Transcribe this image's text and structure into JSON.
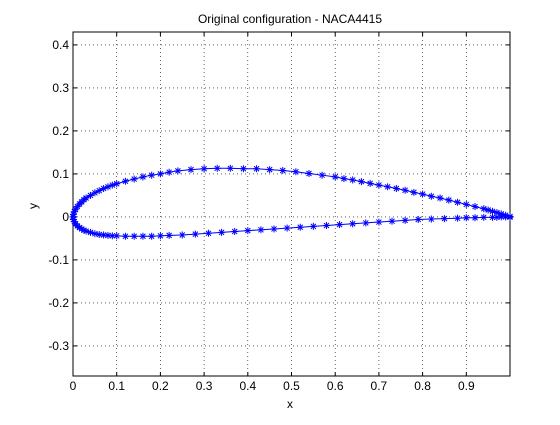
{
  "chart_data": {
    "type": "scatter",
    "title": "Original configuration - NACA4415",
    "xlabel": "x",
    "ylabel": "y",
    "xlim": [
      0,
      1
    ],
    "ylim": [
      -0.37,
      0.43
    ],
    "x_ticks": [
      0,
      0.1,
      0.2,
      0.3,
      0.4,
      0.5,
      0.6,
      0.7,
      0.8,
      0.9
    ],
    "x_tick_labels": [
      "0",
      "0.1",
      "0.2",
      "0.3",
      "0.4",
      "0.5",
      "0.6",
      "0.7",
      "0.8",
      "0.9"
    ],
    "y_ticks": [
      -0.3,
      -0.2,
      -0.1,
      0,
      0.1,
      0.2,
      0.3,
      0.4
    ],
    "y_tick_labels": [
      "-0.3",
      "-0.2",
      "-0.1",
      "0",
      "0.1",
      "0.2",
      "0.3",
      "0.4"
    ],
    "grid": true,
    "grid_style": "dotted",
    "marker": "asterisk",
    "series_color": "#0000ff",
    "series": [
      {
        "line": true,
        "x": [
          1.0,
          0.99,
          0.98,
          0.97,
          0.96,
          0.95,
          0.94,
          0.92,
          0.9,
          0.88,
          0.86,
          0.84,
          0.82,
          0.8,
          0.78,
          0.76,
          0.74,
          0.72,
          0.7,
          0.68,
          0.66,
          0.64,
          0.62,
          0.6,
          0.57,
          0.54,
          0.51,
          0.48,
          0.45,
          0.42,
          0.39,
          0.36,
          0.33,
          0.3,
          0.27,
          0.24,
          0.22,
          0.2,
          0.18,
          0.16,
          0.14,
          0.12,
          0.1,
          0.09,
          0.08,
          0.07,
          0.06,
          0.05,
          0.04,
          0.03,
          0.025,
          0.02,
          0.015,
          0.01,
          0.006,
          0.003,
          0.001,
          0.0,
          0.001,
          0.003,
          0.006,
          0.01,
          0.015,
          0.02,
          0.025,
          0.03,
          0.04,
          0.05,
          0.06,
          0.07,
          0.08,
          0.09,
          0.1,
          0.12,
          0.14,
          0.16,
          0.18,
          0.2,
          0.22,
          0.25,
          0.28,
          0.31,
          0.34,
          0.37,
          0.4,
          0.43,
          0.46,
          0.49,
          0.52,
          0.55,
          0.58,
          0.61,
          0.64,
          0.67,
          0.7,
          0.73,
          0.76,
          0.79,
          0.82,
          0.85,
          0.88,
          0.9,
          0.92,
          0.94,
          0.96,
          0.97,
          0.98,
          0.99,
          1.0
        ],
        "y": [
          0.001,
          0.004,
          0.007,
          0.01,
          0.013,
          0.016,
          0.019,
          0.024,
          0.029,
          0.034,
          0.039,
          0.044,
          0.048,
          0.053,
          0.057,
          0.062,
          0.066,
          0.07,
          0.074,
          0.078,
          0.082,
          0.086,
          0.089,
          0.093,
          0.097,
          0.101,
          0.105,
          0.108,
          0.11,
          0.112,
          0.112,
          0.113,
          0.113,
          0.112,
          0.11,
          0.107,
          0.104,
          0.1,
          0.097,
          0.093,
          0.088,
          0.083,
          0.077,
          0.074,
          0.07,
          0.066,
          0.061,
          0.056,
          0.05,
          0.044,
          0.04,
          0.035,
          0.03,
          0.024,
          0.018,
          0.012,
          0.006,
          0.0,
          -0.006,
          -0.011,
          -0.016,
          -0.021,
          -0.025,
          -0.028,
          -0.031,
          -0.033,
          -0.036,
          -0.039,
          -0.041,
          -0.042,
          -0.043,
          -0.044,
          -0.044,
          -0.045,
          -0.045,
          -0.045,
          -0.045,
          -0.044,
          -0.043,
          -0.042,
          -0.04,
          -0.038,
          -0.036,
          -0.034,
          -0.032,
          -0.03,
          -0.028,
          -0.026,
          -0.024,
          -0.022,
          -0.02,
          -0.018,
          -0.016,
          -0.014,
          -0.012,
          -0.01,
          -0.008,
          -0.006,
          -0.005,
          -0.004,
          -0.003,
          -0.002,
          -0.002,
          -0.001,
          -0.001,
          -0.001,
          0.0,
          0.0,
          -0.001
        ]
      }
    ]
  }
}
